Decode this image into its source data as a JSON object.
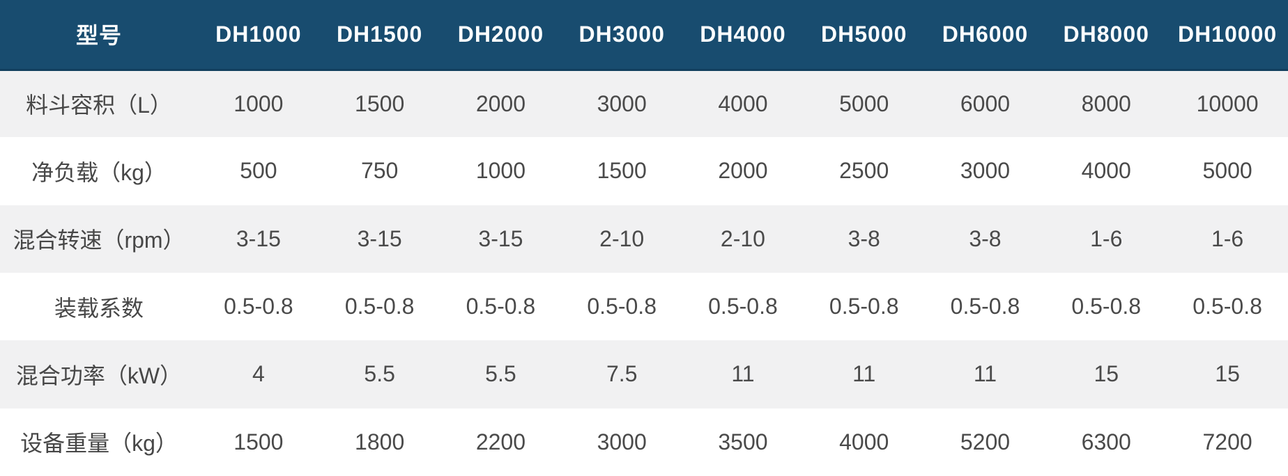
{
  "colors": {
    "header_bg": "#184c6f",
    "header_text": "#fbfdfe",
    "header_border_bottom": "#123f5e",
    "row_alt_bg": "#f1f1f2",
    "row_bg": "#ffffff",
    "body_text": "#4a4a4a"
  },
  "table": {
    "corner_header": "型号",
    "model_columns": [
      "DH1000",
      "DH1500",
      "DH2000",
      "DH3000",
      "DH4000",
      "DH5000",
      "DH6000",
      "DH8000",
      "DH10000"
    ],
    "rows": [
      {
        "label": "料斗容积（L）",
        "values": [
          "1000",
          "1500",
          "2000",
          "3000",
          "4000",
          "5000",
          "6000",
          "8000",
          "10000"
        ]
      },
      {
        "label": "净负载（kg）",
        "values": [
          "500",
          "750",
          "1000",
          "1500",
          "2000",
          "2500",
          "3000",
          "4000",
          "5000"
        ]
      },
      {
        "label": "混合转速（rpm）",
        "values": [
          "3-15",
          "3-15",
          "3-15",
          "2-10",
          "2-10",
          "3-8",
          "3-8",
          "1-6",
          "1-6"
        ]
      },
      {
        "label": "装载系数",
        "values": [
          "0.5-0.8",
          "0.5-0.8",
          "0.5-0.8",
          "0.5-0.8",
          "0.5-0.8",
          "0.5-0.8",
          "0.5-0.8",
          "0.5-0.8",
          "0.5-0.8"
        ]
      },
      {
        "label": "混合功率（kW）",
        "values": [
          "4",
          "5.5",
          "5.5",
          "7.5",
          "11",
          "11",
          "11",
          "15",
          "15"
        ]
      },
      {
        "label": "设备重量（kg）",
        "values": [
          "1500",
          "1800",
          "2200",
          "3000",
          "3500",
          "4000",
          "5200",
          "6300",
          "7200"
        ]
      }
    ]
  }
}
